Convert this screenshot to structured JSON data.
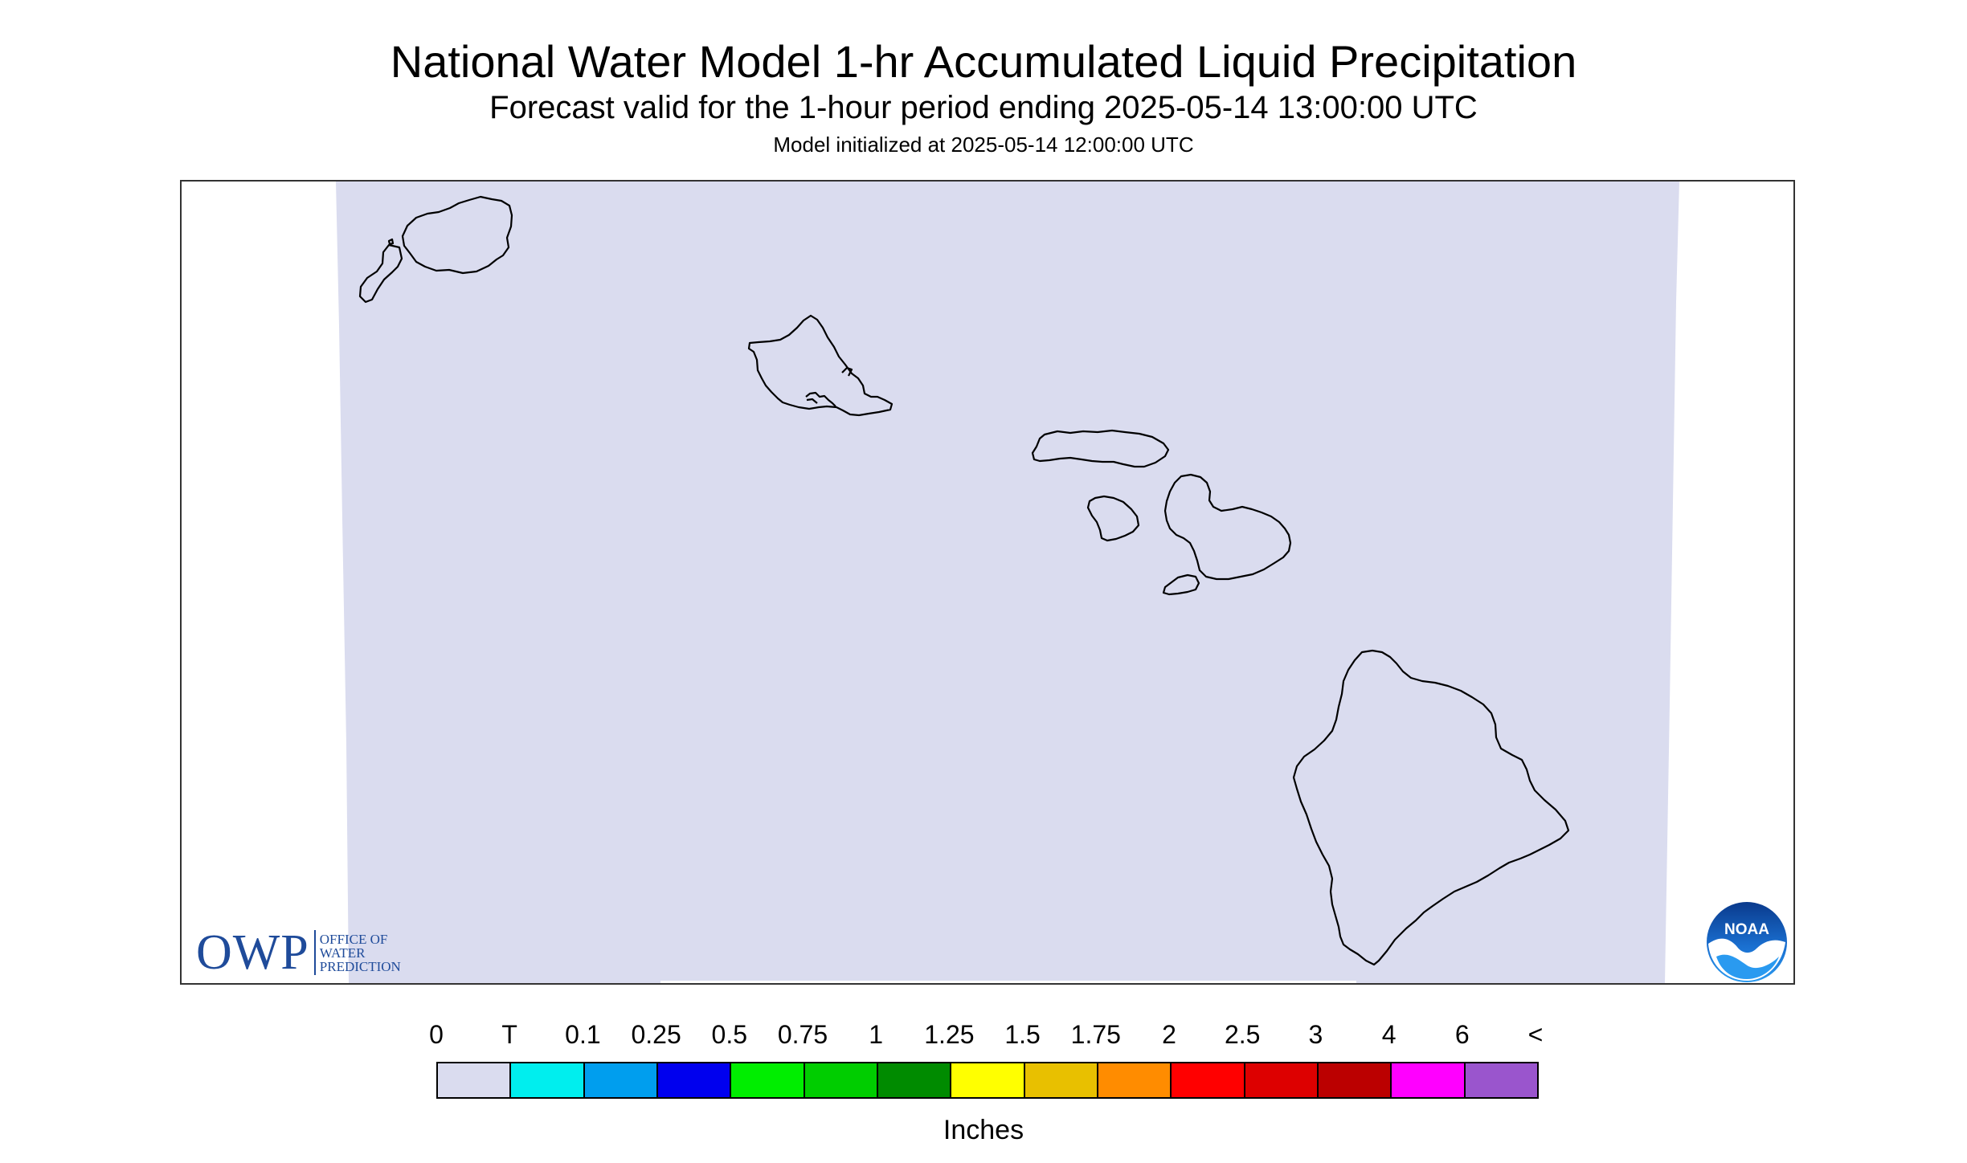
{
  "header": {
    "title": "National Water Model 1-hr Accumulated Liquid Precipitation",
    "subtitle": "Forecast valid for the 1-hour period ending 2025-05-14 13:00:00 UTC",
    "init_line": "Model initialized at 2025-05-14 12:00:00 UTC"
  },
  "map": {
    "region_fill_color": "#dadcef",
    "coastline_color": "#000000",
    "islands": [
      "niihau",
      "kauai",
      "oahu",
      "molokai",
      "lanai",
      "maui",
      "kahoolawe",
      "hawaii"
    ]
  },
  "logos": {
    "owp": {
      "letters": "OWP",
      "line1": "OFFICE OF",
      "line2": "WATER",
      "line3": "PREDICTION",
      "color": "#1f4b9a"
    },
    "noaa": {
      "text": "NOAA",
      "icon": "noaa-seagull-logo"
    }
  },
  "legend": {
    "labels": [
      "0",
      "T",
      "0.1",
      "0.25",
      "0.5",
      "0.75",
      "1",
      "1.25",
      "1.5",
      "1.75",
      "2",
      "2.5",
      "3",
      "4",
      "6",
      "<"
    ],
    "colors": [
      "#dadcef",
      "#00eeee",
      "#009eee",
      "#0000ee",
      "#00ee00",
      "#00cd00",
      "#008b00",
      "#ffff00",
      "#e8c000",
      "#ff8c00",
      "#ff0000",
      "#dd0000",
      "#bb0000",
      "#ff00ff",
      "#9a55cd"
    ],
    "units": "Inches"
  }
}
